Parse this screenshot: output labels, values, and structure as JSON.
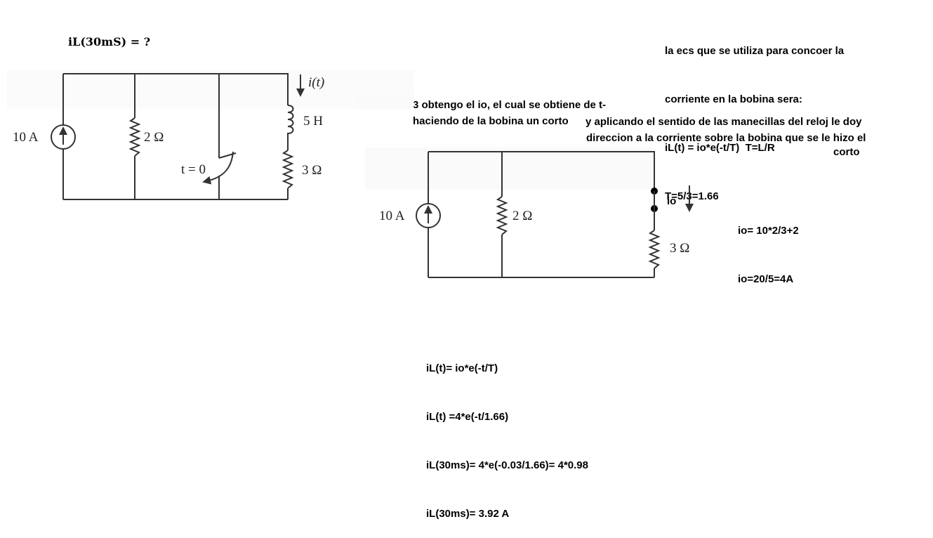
{
  "question": {
    "text": "iL(30mS) = ?"
  },
  "top_note": {
    "lines": [
      "la ecs que se utiliza para concoer la",
      "corriente en la bobina sera:",
      "iL(t) = io*e(-t/T)  T=L/R",
      "T=5/3=1.66"
    ]
  },
  "step3_note": {
    "line1": "3 obtengo el io, el cual se obtiene de t-",
    "line2": "haciendo de la bobina un corto",
    "line3": "y aplicando el sentido de las manecillas del reloj le doy",
    "line4": "direccion a la corriente sobre la bobina que se le hizo el",
    "line5": "corto"
  },
  "io_calc": {
    "line1": "io= 10*2/3+2",
    "line2": "io=20/5=4A"
  },
  "result": {
    "lines": [
      "iL(t)= io*e(-t/T)",
      "iL(t) =4*e(-t/1.66)",
      "iL(30ms)= 4*e(-0.03/1.66)= 4*0.98",
      "iL(30ms)= 3.92 A"
    ]
  },
  "circuit1": {
    "source_label": "10 A",
    "r1_label": "2 Ω",
    "switch_label": "t = 0",
    "current_label": "i(t)",
    "inductor_label": "5 H",
    "r2_label": "3 Ω"
  },
  "circuit2": {
    "source_label": "10 A",
    "r1_label": "2 Ω",
    "io_label": "io",
    "r2_label": "3 Ω"
  }
}
